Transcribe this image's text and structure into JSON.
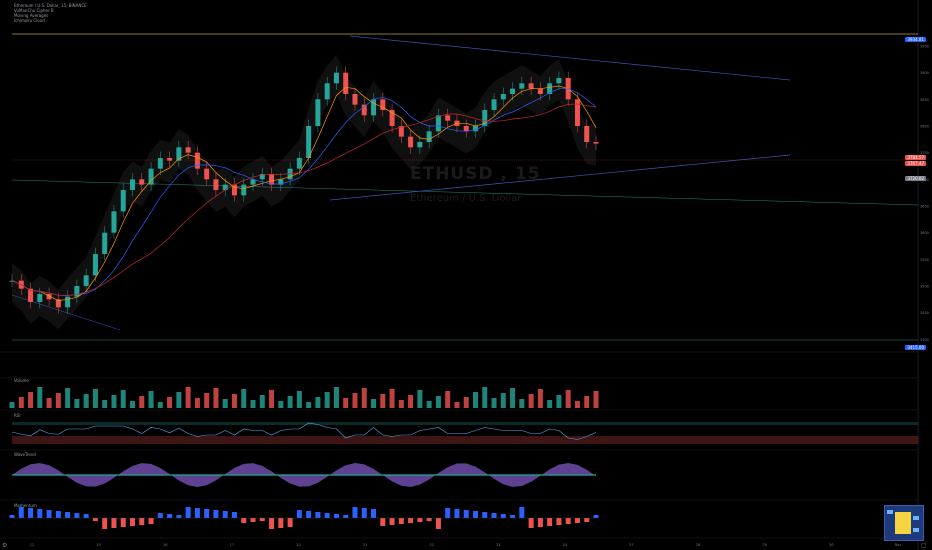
{
  "legend": {
    "symbol_line": "Ethereum / U.S. Dollar, 15, BINANCE",
    "indicator_1": "VuManChu Cipher B",
    "indicator_2": "Moving Averages",
    "indicator_3": "Ichimoku Cloud"
  },
  "watermark": {
    "symbol": "ETHUSD , 15",
    "description": "Ethereum / U.S. Dollar"
  },
  "panes": {
    "volume_label": "Volume",
    "rsi_label": "RSI",
    "wavetrend_label": "WaveTrend",
    "momentum_label": "Momentum"
  },
  "colors": {
    "bull": "#26a69a",
    "bear": "#ef5350",
    "ma_red": "#c62828",
    "ma_orange": "#ff9800",
    "ma_blue": "#2962ff",
    "trend_blue": "#3f51b5",
    "level_gold": "#b8a14a",
    "level_teal": "#1e8a7a",
    "rsi_line": "#5aa9e6",
    "wave_purple": "#7e57c2",
    "momentum_blue": "#2962ff",
    "momentum_red": "#ef5350"
  },
  "price_badges": [
    {
      "price": "3934.81",
      "color": "#2962ff"
    },
    {
      "price": "3784.57",
      "color": "#ef5350"
    },
    {
      "price": "3767.47",
      "color": "#ef5350"
    },
    {
      "price": "3720.02",
      "color": "#787b86"
    },
    {
      "price": "3415.00",
      "color": "#2962ff"
    }
  ],
  "chart_data": {
    "type": "line",
    "title": "",
    "y_ticks": [
      3950,
      3900,
      3850,
      3800,
      3750,
      3700,
      3650,
      3600,
      3550,
      3500,
      3450,
      3400
    ],
    "x_ticks": [
      "12",
      "15",
      "16",
      "17",
      "20",
      "21",
      "22",
      "23",
      "24",
      "27",
      "28",
      "29",
      "30",
      "Dec"
    ],
    "ylim": [
      3380,
      3980
    ],
    "series": [
      {
        "name": "",
        "values": [
          3510,
          3495,
          3470,
          3485,
          3475,
          3460,
          3480,
          3500,
          3520,
          3560,
          3600,
          3640,
          3680,
          3700,
          3690,
          3720,
          3740,
          3735,
          3760,
          3750,
          3720,
          3700,
          3680,
          3690,
          3670,
          3690,
          3700,
          3710,
          3690,
          3700,
          3720,
          3740,
          3800,
          3850,
          3880,
          3900,
          3860,
          3840,
          3820,
          3850,
          3830,
          3800,
          3780,
          3760,
          3770,
          3790,
          3820,
          3810,
          3800,
          3790,
          3800,
          3830,
          3850,
          3860,
          3870,
          3880,
          3870,
          3860,
          3880,
          3890,
          3850,
          3800,
          3770,
          3767
        ]
      }
    ]
  }
}
